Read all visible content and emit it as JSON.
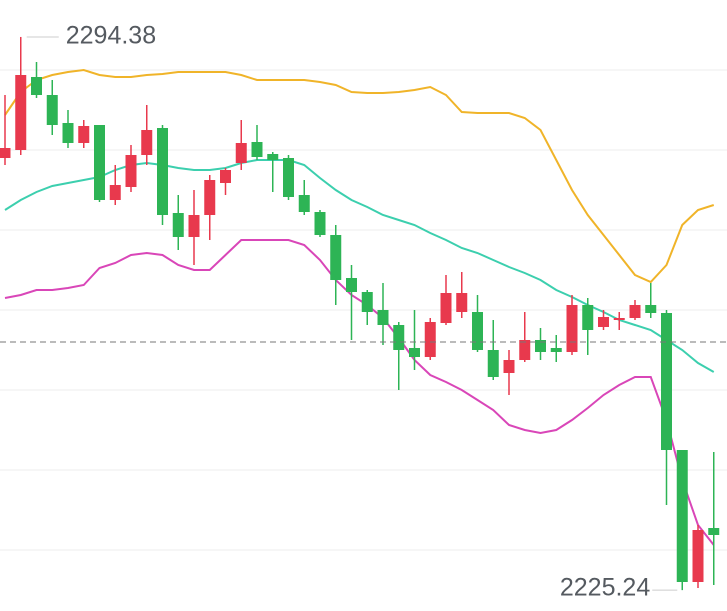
{
  "chart_data": {
    "type": "candlestick",
    "ylim": [
      2222.625,
      2299
    ],
    "yticks": [
      2290.25,
      2280.25,
      2270.25,
      2260.25,
      2250.25,
      2240.25,
      2230.25
    ],
    "grid": true,
    "reference_line": 2256.25,
    "up_color": "#e8394d",
    "down_color": "#2db455",
    "open": [
      2279.25,
      2280.25,
      2289.375,
      2287.125,
      2283.625,
      2281.125,
      2283.375,
      2274,
      2275.625,
      2279.625,
      2283,
      2272.375,
      2269.375,
      2272.125,
      2276.125,
      2278.625,
      2281.25,
      2279.75,
      2279.25,
      2274.625,
      2272.5,
      2269.625,
      2264.25,
      2262.5,
      2260.25,
      2258.375,
      2255.5,
      2254.375,
      2258.625,
      2260,
      2260,
      2255.25,
      2252.375,
      2254,
      2256.5,
      2255.5,
      2255,
      2260.875,
      2258.125,
      2259,
      2259.25,
      2260.875,
      2259.875,
      2242.75,
      2226.25,
      2233
    ],
    "high": [
      2287.125,
      2294.38,
      2291.25,
      2289,
      2285.25,
      2284,
      2283.375,
      2278.375,
      2280.875,
      2285.875,
      2283.375,
      2274.625,
      2275.25,
      2277.125,
      2278,
      2284,
      2283.375,
      2280,
      2279.625,
      2276.5,
      2272.75,
      2270.875,
      2265.875,
      2262.75,
      2263.625,
      2258.75,
      2260.25,
      2259.25,
      2264.625,
      2265,
      2262.125,
      2259,
      2255.25,
      2260,
      2258,
      2257.125,
      2262.125,
      2261.75,
      2260.25,
      2260,
      2261.5,
      2263.625,
      2260.25,
      2242.75,
      2233.375,
      2242.5
    ],
    "low": [
      2278.375,
      2279.625,
      2286.75,
      2282.125,
      2280.5,
      2280.5,
      2273.75,
      2273.375,
      2275,
      2278.375,
      2270.875,
      2267.75,
      2265.875,
      2269,
      2274.625,
      2277.75,
      2279,
      2275,
      2274,
      2272.125,
      2269.375,
      2260.875,
      2256.5,
      2258.375,
      2255.875,
      2250.25,
      2252.75,
      2254,
      2258.375,
      2259.25,
      2255,
      2251.5,
      2249.625,
      2253.75,
      2254,
      2253.75,
      2254.625,
      2254.625,
      2257.75,
      2257.75,
      2259,
      2259.25,
      2235.875,
      2225.24,
      2225.5,
      2225.875
    ],
    "close": [
      2280.5,
      2289.625,
      2287.125,
      2283.375,
      2281.125,
      2283.25,
      2274,
      2275.875,
      2279.625,
      2282.75,
      2272.125,
      2269.375,
      2272.125,
      2276.5,
      2277.75,
      2281.125,
      2279.375,
      2279,
      2274.375,
      2272.5,
      2269.625,
      2264,
      2262.5,
      2260,
      2258.375,
      2255.25,
      2254.375,
      2258.75,
      2262.375,
      2262.375,
      2255.25,
      2251.875,
      2254,
      2256.5,
      2255,
      2255,
      2260.875,
      2257.75,
      2259.375,
      2259.25,
      2260.875,
      2259.875,
      2242.75,
      2226.25,
      2232.75,
      2232.125
    ],
    "bands": [
      {
        "color": "#f0b429",
        "values": [
          2284.625,
          2287.5,
          2289,
          2289.625,
          2290,
          2290.25,
          2289.625,
          2289.375,
          2289.375,
          2289.625,
          2289.75,
          2290,
          2290,
          2290,
          2290,
          2289.625,
          2289,
          2289,
          2289,
          2289,
          2288.75,
          2288.375,
          2287.5,
          2287.375,
          2287.375,
          2287.5,
          2287.75,
          2288.125,
          2287.125,
          2285,
          2284.875,
          2284.875,
          2284.875,
          2284.25,
          2282.75,
          2279,
          2275.25,
          2272.125,
          2269.625,
          2267.125,
          2264.625,
          2263.75,
          2265.875,
          2270.875,
          2272.75,
          2273.375
        ]
      },
      {
        "color": "#3ccfae",
        "values": [
          2272.75,
          2274,
          2275,
          2275.75,
          2276.125,
          2276.5,
          2276.875,
          2277.75,
          2278.375,
          2278.625,
          2278.375,
          2278,
          2277.75,
          2277.75,
          2278,
          2278.625,
          2279,
          2279,
          2279,
          2278.375,
          2276.75,
          2275.25,
          2274,
          2273.125,
          2272.125,
          2271.5,
          2270.875,
          2269.875,
          2269,
          2268,
          2267.375,
          2266.5,
          2265.625,
          2264.875,
          2264,
          2262.75,
          2261.875,
          2260.875,
          2260,
          2259,
          2258.375,
          2257.75,
          2256.5,
          2255.25,
          2253.625,
          2252.5
        ]
      },
      {
        "color": "#d946b8",
        "values": [
          2261.75,
          2262.125,
          2262.75,
          2262.75,
          2263,
          2263.375,
          2265.5,
          2266.125,
          2267.125,
          2267.375,
          2267.125,
          2265.875,
          2265.25,
          2265.25,
          2267.125,
          2269,
          2269,
          2269,
          2269,
          2268.375,
          2266.5,
          2264,
          2262.125,
          2260.875,
          2259.25,
          2256.75,
          2254,
          2252.125,
          2251.25,
          2250.25,
          2249,
          2247.75,
          2245.875,
          2245.25,
          2244.875,
          2245.25,
          2246.5,
          2248,
          2249.625,
          2250.875,
          2251.875,
          2251.875,
          2246.5,
          2239,
          2233.375,
          2230.875
        ]
      }
    ],
    "annotations": [
      {
        "label": "2294.38",
        "value": 2294.38
      },
      {
        "label": "2225.24",
        "value": 2225.24
      }
    ]
  }
}
